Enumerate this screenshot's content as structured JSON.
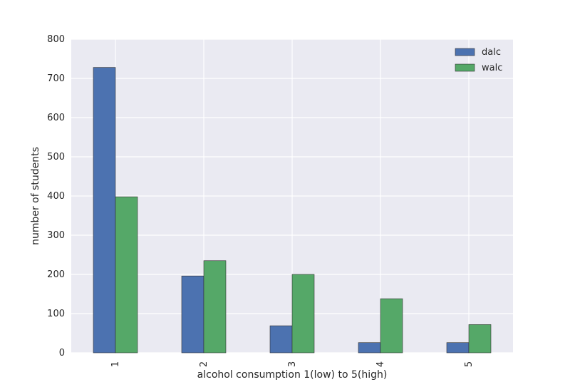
{
  "chart_data": {
    "type": "bar",
    "categories": [
      "1",
      "2",
      "3",
      "4",
      "5"
    ],
    "series": [
      {
        "name": "dalc",
        "values": [
          728,
          196,
          69,
          26,
          26
        ],
        "color": "#4c72b0"
      },
      {
        "name": "walc",
        "values": [
          398,
          235,
          200,
          138,
          72
        ],
        "color": "#55a868"
      }
    ],
    "xlabel": "alcohol consumption 1(low) to 5(high)",
    "ylabel": "number of students",
    "ylim": [
      0,
      800
    ],
    "yticks": [
      0,
      100,
      200,
      300,
      400,
      500,
      600,
      700,
      800
    ],
    "grid": true,
    "legend_position": "top-right",
    "background": "#eaeaf2"
  }
}
